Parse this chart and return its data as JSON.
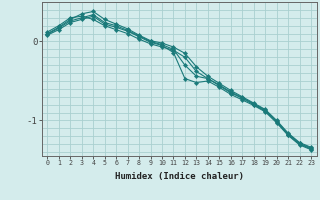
{
  "xlabel": "Humidex (Indice chaleur)",
  "xlim": [
    -0.5,
    23.5
  ],
  "ylim": [
    -1.45,
    0.5
  ],
  "yticks": [
    0,
    -1
  ],
  "xticks": [
    0,
    1,
    2,
    3,
    4,
    5,
    6,
    7,
    8,
    9,
    10,
    11,
    12,
    13,
    14,
    15,
    16,
    17,
    18,
    19,
    20,
    21,
    22,
    23
  ],
  "background_color": "#d4ecec",
  "grid_color": "#aad0d0",
  "line_color": "#1a7a7a",
  "lines": [
    {
      "x": [
        0,
        1,
        2,
        3,
        4,
        5,
        6,
        7,
        8,
        9,
        10,
        11,
        12,
        13,
        14,
        15,
        16,
        17,
        18,
        19,
        20,
        21,
        22,
        23
      ],
      "y": [
        0.12,
        0.2,
        0.3,
        0.32,
        0.28,
        0.2,
        0.15,
        0.1,
        0.03,
        -0.03,
        -0.07,
        -0.11,
        -0.2,
        -0.38,
        -0.47,
        -0.56,
        -0.65,
        -0.72,
        -0.8,
        -0.88,
        -1.02,
        -1.18,
        -1.3,
        -1.36
      ]
    },
    {
      "x": [
        0,
        1,
        2,
        3,
        4,
        5,
        6,
        7,
        8,
        9,
        10,
        11,
        12,
        13,
        14,
        15,
        16,
        17,
        18,
        19,
        20,
        21,
        22,
        23
      ],
      "y": [
        0.1,
        0.18,
        0.28,
        0.35,
        0.38,
        0.28,
        0.22,
        0.16,
        0.08,
        0.01,
        -0.02,
        -0.07,
        -0.15,
        -0.32,
        -0.44,
        -0.53,
        -0.62,
        -0.7,
        -0.78,
        -0.86,
        -1.0,
        -1.16,
        -1.28,
        -1.34
      ]
    },
    {
      "x": [
        0,
        1,
        2,
        3,
        4,
        5,
        6,
        7,
        8,
        9,
        10,
        11,
        12,
        13,
        14,
        15,
        16,
        17,
        18,
        19,
        20,
        21,
        22,
        23
      ],
      "y": [
        0.08,
        0.15,
        0.24,
        0.28,
        0.32,
        0.22,
        0.18,
        0.13,
        0.06,
        -0.01,
        -0.05,
        -0.14,
        -0.47,
        -0.52,
        -0.5,
        -0.58,
        -0.67,
        -0.74,
        -0.81,
        -0.89,
        -1.03,
        -1.19,
        -1.31,
        -1.37
      ]
    },
    {
      "x": [
        0,
        1,
        2,
        3,
        4,
        5,
        6,
        7,
        8,
        9,
        10,
        11,
        12,
        13,
        14,
        15,
        16,
        17,
        18,
        19,
        20,
        21,
        22,
        23
      ],
      "y": [
        0.09,
        0.17,
        0.26,
        0.3,
        0.34,
        0.24,
        0.2,
        0.14,
        0.07,
        0.0,
        -0.04,
        -0.1,
        -0.3,
        -0.44,
        -0.47,
        -0.55,
        -0.64,
        -0.71,
        -0.79,
        -0.87,
        -1.01,
        -1.17,
        -1.29,
        -1.35
      ]
    }
  ]
}
